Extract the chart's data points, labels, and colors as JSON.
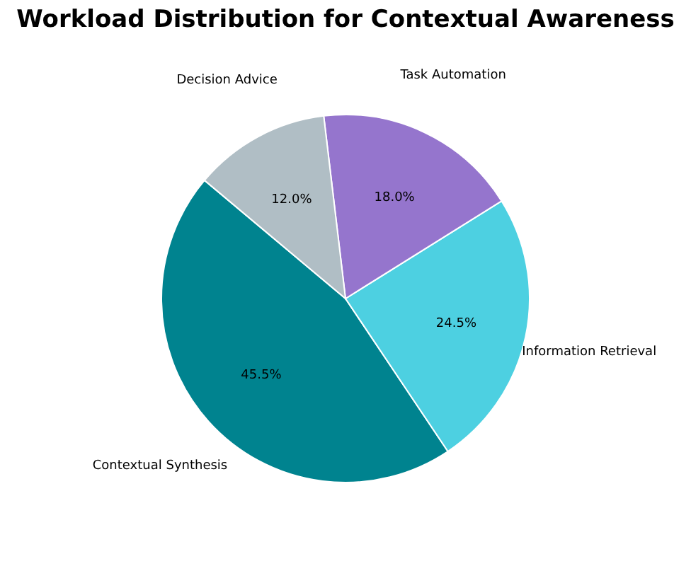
{
  "chart_data": {
    "type": "pie",
    "title": "Workload Distribution for Contextual Awareness",
    "categories": [
      "Contextual Synthesis",
      "Information Retrieval",
      "Task Automation",
      "Decision Advice"
    ],
    "values": [
      45.5,
      24.5,
      18.0,
      12.0
    ],
    "value_labels": [
      "45.5%",
      "24.5%",
      "18.0%",
      "12.0%"
    ],
    "colors": [
      "#00838f",
      "#4dd0e1",
      "#9575cd",
      "#b0bec5"
    ]
  }
}
